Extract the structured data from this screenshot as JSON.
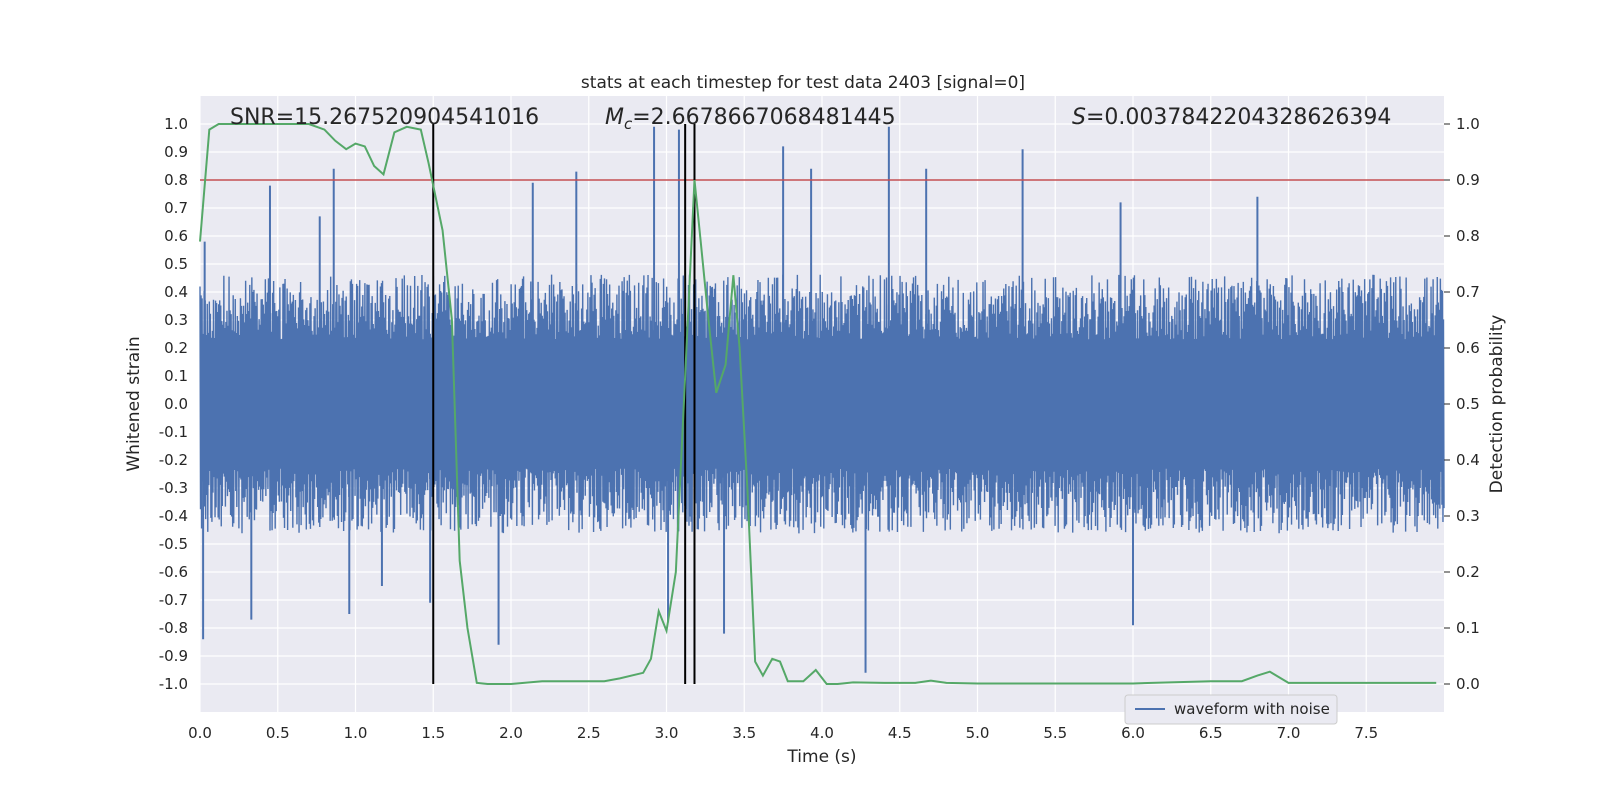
{
  "chart_data": {
    "type": "line",
    "title": "stats at each timestep for test data 2403 [signal=0]",
    "xlabel": "Time (s)",
    "ylabel": "Whitened strain",
    "y2label": "Detection probability",
    "xlim": [
      0.0,
      8.0
    ],
    "ylim": [
      -1.1,
      1.1
    ],
    "y2lim": [
      -0.05,
      1.05
    ],
    "xticks": [
      "0.0",
      "0.5",
      "1.0",
      "1.5",
      "2.0",
      "2.5",
      "3.0",
      "3.5",
      "4.0",
      "4.5",
      "5.0",
      "5.5",
      "6.0",
      "6.5",
      "7.0",
      "7.5"
    ],
    "yticks": [
      "-1.0",
      "-0.9",
      "-0.8",
      "-0.7",
      "-0.6",
      "-0.5",
      "-0.4",
      "-0.3",
      "-0.2",
      "-0.1",
      "0.0",
      "0.1",
      "0.2",
      "0.3",
      "0.4",
      "0.5",
      "0.6",
      "0.7",
      "0.8",
      "0.9",
      "1.0"
    ],
    "y2ticks": [
      "0.0",
      "0.1",
      "0.2",
      "0.3",
      "0.4",
      "0.5",
      "0.6",
      "0.7",
      "0.8",
      "0.9",
      "1.0"
    ],
    "grid": true,
    "legend_position": "lower-right",
    "annotations": {
      "snr": "SNR=15.267520904541016",
      "mc_symbol": "M",
      "mc_sub": "c",
      "mc_value": "=2.6678667068481445",
      "s_symbol": "S",
      "s_value": "=0.0037842204328626394"
    },
    "series": [
      {
        "name": "waveform with noise",
        "axis": "left",
        "color": "#4c72b0",
        "style": "dense noisy waveform",
        "typical_amplitude": 0.42,
        "peaks": [
          {
            "x": 0.03,
            "y": 0.58
          },
          {
            "x": 0.02,
            "y": -0.84
          },
          {
            "x": 0.45,
            "y": 0.78
          },
          {
            "x": 0.33,
            "y": -0.77
          },
          {
            "x": 0.77,
            "y": 0.67
          },
          {
            "x": 0.86,
            "y": 0.84
          },
          {
            "x": 0.96,
            "y": -0.75
          },
          {
            "x": 1.17,
            "y": -0.65
          },
          {
            "x": 1.48,
            "y": -0.71
          },
          {
            "x": 1.92,
            "y": -0.86
          },
          {
            "x": 2.14,
            "y": 0.79
          },
          {
            "x": 2.42,
            "y": 0.83
          },
          {
            "x": 2.92,
            "y": 0.99
          },
          {
            "x": 3.08,
            "y": 0.98
          },
          {
            "x": 3.01,
            "y": -0.78
          },
          {
            "x": 3.37,
            "y": -0.82
          },
          {
            "x": 3.75,
            "y": 0.92
          },
          {
            "x": 3.93,
            "y": 0.84
          },
          {
            "x": 4.28,
            "y": -0.96
          },
          {
            "x": 4.43,
            "y": 0.99
          },
          {
            "x": 4.67,
            "y": 0.84
          },
          {
            "x": 5.29,
            "y": 0.91
          },
          {
            "x": 5.92,
            "y": 0.72
          },
          {
            "x": 6.0,
            "y": -0.79
          },
          {
            "x": 6.8,
            "y": 0.74
          }
        ]
      },
      {
        "name": "",
        "axis": "right",
        "color": "#55a868",
        "x": [
          0.0,
          0.06,
          0.12,
          0.3,
          0.5,
          0.6,
          0.7,
          0.8,
          0.87,
          0.94,
          1.0,
          1.06,
          1.12,
          1.18,
          1.25,
          1.33,
          1.42,
          1.47,
          1.5,
          1.56,
          1.62,
          1.67,
          1.72,
          1.78,
          1.85,
          2.0,
          2.2,
          2.4,
          2.6,
          2.7,
          2.85,
          2.9,
          2.95,
          3.0,
          3.06,
          3.12,
          3.18,
          3.22,
          3.27,
          3.32,
          3.38,
          3.43,
          3.47,
          3.52,
          3.57,
          3.62,
          3.68,
          3.73,
          3.78,
          3.88,
          3.96,
          4.03,
          4.1,
          4.2,
          4.4,
          4.6,
          4.7,
          4.8,
          5.0,
          5.4,
          6.0,
          6.5,
          6.7,
          6.8,
          6.88,
          7.0,
          7.3,
          7.8,
          7.95
        ],
        "values": [
          0.79,
          0.99,
          1.0,
          1.0,
          1.0,
          1.0,
          1.0,
          0.99,
          0.97,
          0.955,
          0.965,
          0.96,
          0.925,
          0.91,
          0.985,
          0.995,
          0.99,
          0.93,
          0.89,
          0.81,
          0.65,
          0.22,
          0.1,
          0.002,
          0.0,
          0.0,
          0.005,
          0.005,
          0.005,
          0.01,
          0.02,
          0.045,
          0.13,
          0.095,
          0.2,
          0.55,
          0.9,
          0.79,
          0.65,
          0.52,
          0.57,
          0.73,
          0.6,
          0.35,
          0.04,
          0.015,
          0.045,
          0.04,
          0.005,
          0.005,
          0.025,
          0.0,
          0.0,
          0.003,
          0.002,
          0.002,
          0.006,
          0.002,
          0.001,
          0.001,
          0.001,
          0.005,
          0.005,
          0.015,
          0.022,
          0.002,
          0.002,
          0.002,
          0.002
        ]
      }
    ],
    "threshold": {
      "axis": "right",
      "value": 0.9,
      "color": "#c44e52"
    },
    "vlines": [
      1.5,
      3.12,
      3.18
    ]
  }
}
